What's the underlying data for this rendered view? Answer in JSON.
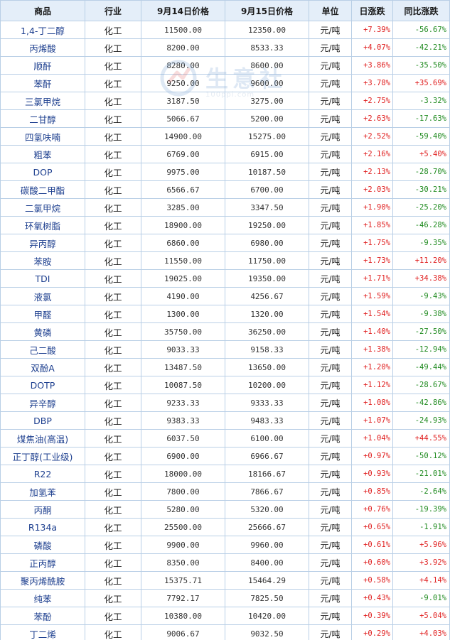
{
  "table": {
    "headers": [
      "商品",
      "行业",
      "9月14日价格",
      "9月15日价格",
      "单位",
      "日涨跌",
      "同比涨跌"
    ],
    "rows": [
      {
        "name": "1,4-丁二醇",
        "industry": "化工",
        "p1": "11500.00",
        "p2": "12350.00",
        "unit": "元/吨",
        "day": "+7.39%",
        "yoy": "-56.67%"
      },
      {
        "name": "丙烯酸",
        "industry": "化工",
        "p1": "8200.00",
        "p2": "8533.33",
        "unit": "元/吨",
        "day": "+4.07%",
        "yoy": "-42.21%"
      },
      {
        "name": "顺酐",
        "industry": "化工",
        "p1": "8280.00",
        "p2": "8600.00",
        "unit": "元/吨",
        "day": "+3.86%",
        "yoy": "-35.50%"
      },
      {
        "name": "苯酐",
        "industry": "化工",
        "p1": "9250.00",
        "p2": "9600.00",
        "unit": "元/吨",
        "day": "+3.78%",
        "yoy": "+35.69%"
      },
      {
        "name": "三氯甲烷",
        "industry": "化工",
        "p1": "3187.50",
        "p2": "3275.00",
        "unit": "元/吨",
        "day": "+2.75%",
        "yoy": "-3.32%"
      },
      {
        "name": "二甘醇",
        "industry": "化工",
        "p1": "5066.67",
        "p2": "5200.00",
        "unit": "元/吨",
        "day": "+2.63%",
        "yoy": "-17.63%"
      },
      {
        "name": "四氢呋喃",
        "industry": "化工",
        "p1": "14900.00",
        "p2": "15275.00",
        "unit": "元/吨",
        "day": "+2.52%",
        "yoy": "-59.40%"
      },
      {
        "name": "粗苯",
        "industry": "化工",
        "p1": "6769.00",
        "p2": "6915.00",
        "unit": "元/吨",
        "day": "+2.16%",
        "yoy": "+5.40%"
      },
      {
        "name": "DOP",
        "industry": "化工",
        "p1": "9975.00",
        "p2": "10187.50",
        "unit": "元/吨",
        "day": "+2.13%",
        "yoy": "-28.70%"
      },
      {
        "name": "碳酸二甲酯",
        "industry": "化工",
        "p1": "6566.67",
        "p2": "6700.00",
        "unit": "元/吨",
        "day": "+2.03%",
        "yoy": "-30.21%"
      },
      {
        "name": "二氯甲烷",
        "industry": "化工",
        "p1": "3285.00",
        "p2": "3347.50",
        "unit": "元/吨",
        "day": "+1.90%",
        "yoy": "-25.20%"
      },
      {
        "name": "环氧树脂",
        "industry": "化工",
        "p1": "18900.00",
        "p2": "19250.00",
        "unit": "元/吨",
        "day": "+1.85%",
        "yoy": "-46.28%"
      },
      {
        "name": "异丙醇",
        "industry": "化工",
        "p1": "6860.00",
        "p2": "6980.00",
        "unit": "元/吨",
        "day": "+1.75%",
        "yoy": "-9.35%"
      },
      {
        "name": "苯胺",
        "industry": "化工",
        "p1": "11550.00",
        "p2": "11750.00",
        "unit": "元/吨",
        "day": "+1.73%",
        "yoy": "+11.20%"
      },
      {
        "name": "TDI",
        "industry": "化工",
        "p1": "19025.00",
        "p2": "19350.00",
        "unit": "元/吨",
        "day": "+1.71%",
        "yoy": "+34.38%"
      },
      {
        "name": "液氯",
        "industry": "化工",
        "p1": "4190.00",
        "p2": "4256.67",
        "unit": "元/吨",
        "day": "+1.59%",
        "yoy": "-9.43%"
      },
      {
        "name": "甲醛",
        "industry": "化工",
        "p1": "1300.00",
        "p2": "1320.00",
        "unit": "元/吨",
        "day": "+1.54%",
        "yoy": "-9.38%"
      },
      {
        "name": "黄磷",
        "industry": "化工",
        "p1": "35750.00",
        "p2": "36250.00",
        "unit": "元/吨",
        "day": "+1.40%",
        "yoy": "-27.50%"
      },
      {
        "name": "己二酸",
        "industry": "化工",
        "p1": "9033.33",
        "p2": "9158.33",
        "unit": "元/吨",
        "day": "+1.38%",
        "yoy": "-12.94%"
      },
      {
        "name": "双酚A",
        "industry": "化工",
        "p1": "13487.50",
        "p2": "13650.00",
        "unit": "元/吨",
        "day": "+1.20%",
        "yoy": "-49.44%"
      },
      {
        "name": "DOTP",
        "industry": "化工",
        "p1": "10087.50",
        "p2": "10200.00",
        "unit": "元/吨",
        "day": "+1.12%",
        "yoy": "-28.67%"
      },
      {
        "name": "异辛醇",
        "industry": "化工",
        "p1": "9233.33",
        "p2": "9333.33",
        "unit": "元/吨",
        "day": "+1.08%",
        "yoy": "-42.86%"
      },
      {
        "name": "DBP",
        "industry": "化工",
        "p1": "9383.33",
        "p2": "9483.33",
        "unit": "元/吨",
        "day": "+1.07%",
        "yoy": "-24.93%"
      },
      {
        "name": "煤焦油(高温)",
        "industry": "化工",
        "p1": "6037.50",
        "p2": "6100.00",
        "unit": "元/吨",
        "day": "+1.04%",
        "yoy": "+44.55%"
      },
      {
        "name": "正丁醇(工业级)",
        "industry": "化工",
        "p1": "6900.00",
        "p2": "6966.67",
        "unit": "元/吨",
        "day": "+0.97%",
        "yoy": "-50.12%"
      },
      {
        "name": "R22",
        "industry": "化工",
        "p1": "18000.00",
        "p2": "18166.67",
        "unit": "元/吨",
        "day": "+0.93%",
        "yoy": "-21.01%"
      },
      {
        "name": "加氢苯",
        "industry": "化工",
        "p1": "7800.00",
        "p2": "7866.67",
        "unit": "元/吨",
        "day": "+0.85%",
        "yoy": "-2.64%"
      },
      {
        "name": "丙酮",
        "industry": "化工",
        "p1": "5280.00",
        "p2": "5320.00",
        "unit": "元/吨",
        "day": "+0.76%",
        "yoy": "-19.39%"
      },
      {
        "name": "R134a",
        "industry": "化工",
        "p1": "25500.00",
        "p2": "25666.67",
        "unit": "元/吨",
        "day": "+0.65%",
        "yoy": "-1.91%"
      },
      {
        "name": "磷酸",
        "industry": "化工",
        "p1": "9900.00",
        "p2": "9960.00",
        "unit": "元/吨",
        "day": "+0.61%",
        "yoy": "+5.96%"
      },
      {
        "name": "正丙醇",
        "industry": "化工",
        "p1": "8350.00",
        "p2": "8400.00",
        "unit": "元/吨",
        "day": "+0.60%",
        "yoy": "+3.92%"
      },
      {
        "name": "聚丙烯酰胺",
        "industry": "化工",
        "p1": "15375.71",
        "p2": "15464.29",
        "unit": "元/吨",
        "day": "+0.58%",
        "yoy": "+4.14%"
      },
      {
        "name": "纯苯",
        "industry": "化工",
        "p1": "7792.17",
        "p2": "7825.50",
        "unit": "元/吨",
        "day": "+0.43%",
        "yoy": "-9.01%"
      },
      {
        "name": "苯酚",
        "industry": "化工",
        "p1": "10380.00",
        "p2": "10420.00",
        "unit": "元/吨",
        "day": "+0.39%",
        "yoy": "+5.04%"
      },
      {
        "name": "丁二烯",
        "industry": "化工",
        "p1": "9006.67",
        "p2": "9032.50",
        "unit": "元/吨",
        "day": "+0.29%",
        "yoy": "+4.03%"
      }
    ]
  },
  "watermark": {
    "text": "生意社",
    "url": "100ppi.com",
    "color": "#6c9bd0"
  },
  "colors": {
    "up": "#e02020",
    "down": "#1e8a1e",
    "header_bg": "#e4eef9",
    "border": "#b9cfe6",
    "name_text": "#1d3f8f"
  }
}
